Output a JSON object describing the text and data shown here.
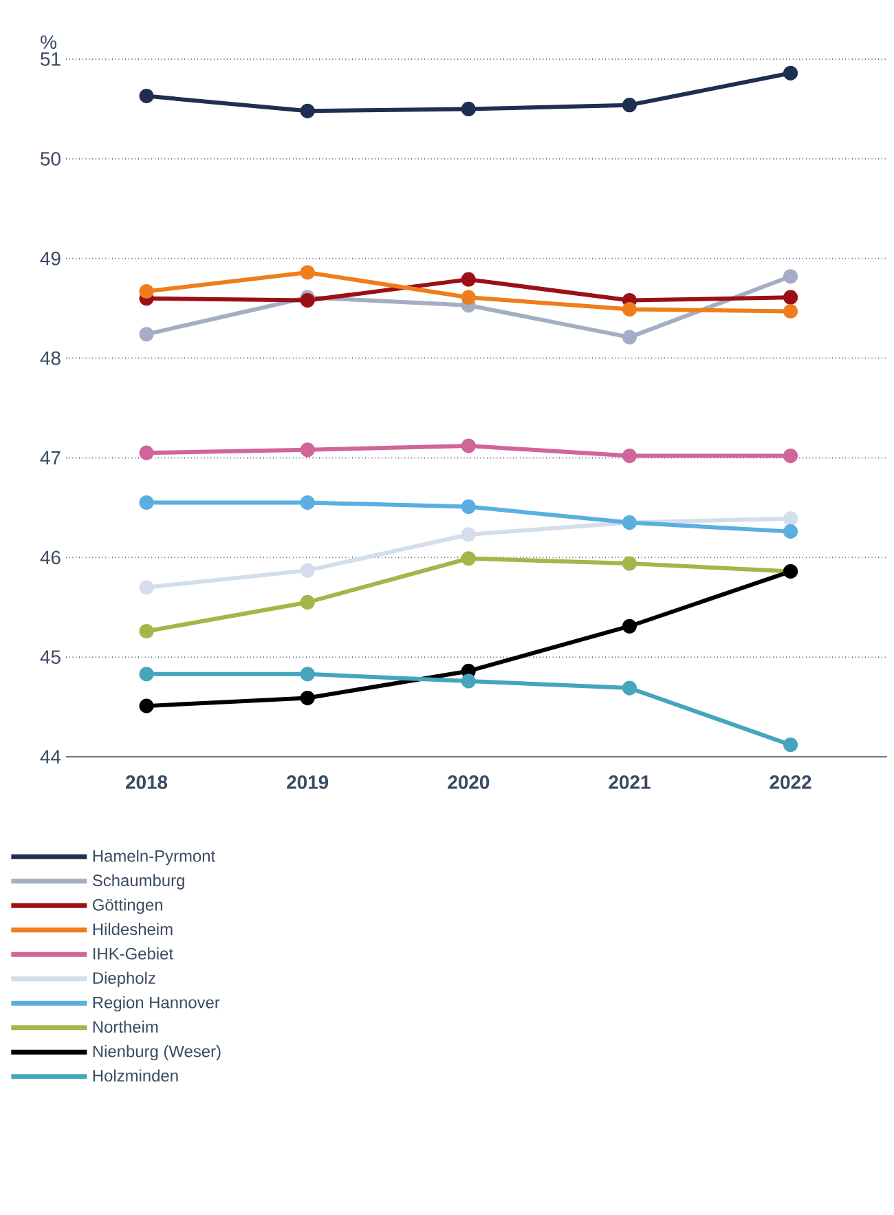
{
  "chart_data": {
    "type": "line",
    "ylabel": "%",
    "categories": [
      "2018",
      "2019",
      "2020",
      "2021",
      "2022"
    ],
    "ylim": [
      44,
      51
    ],
    "yticks": [
      44,
      45,
      46,
      47,
      48,
      49,
      50,
      51
    ],
    "grid": "y",
    "legend": "bottom",
    "marker": "circle",
    "line_style": "solid",
    "series": [
      {
        "name": "Hameln-Pyrmont",
        "color": "#1f2f52",
        "values": [
          50.63,
          50.48,
          50.5,
          50.54,
          50.86
        ]
      },
      {
        "name": "Schaumburg",
        "color": "#a5adc4",
        "values": [
          48.24,
          48.61,
          48.53,
          48.21,
          48.82
        ]
      },
      {
        "name": "Göttingen",
        "color": "#9b1016",
        "values": [
          48.6,
          48.58,
          48.79,
          48.58,
          48.61
        ]
      },
      {
        "name": "Hildesheim",
        "color": "#ef7d1b",
        "values": [
          48.67,
          48.86,
          48.61,
          48.49,
          48.47
        ]
      },
      {
        "name": "IHK-Gebiet",
        "color": "#d0659a",
        "values": [
          47.05,
          47.08,
          47.12,
          47.02,
          47.02
        ]
      },
      {
        "name": "Diepholz",
        "color": "#d3deea",
        "values": [
          45.7,
          45.87,
          46.23,
          46.35,
          46.39
        ]
      },
      {
        "name": "Region Hannover",
        "color": "#5aaee0",
        "values": [
          46.55,
          46.55,
          46.51,
          46.35,
          46.26
        ]
      },
      {
        "name": "Northeim",
        "color": "#a5b548",
        "values": [
          45.26,
          45.55,
          45.99,
          45.94,
          45.86
        ]
      },
      {
        "name": "Nienburg (Weser)",
        "color": "#000000",
        "values": [
          44.51,
          44.59,
          44.86,
          45.31,
          45.86
        ]
      },
      {
        "name": "Holzminden",
        "color": "#45a5bd",
        "values": [
          44.83,
          44.83,
          44.76,
          44.69,
          44.12
        ]
      }
    ]
  }
}
